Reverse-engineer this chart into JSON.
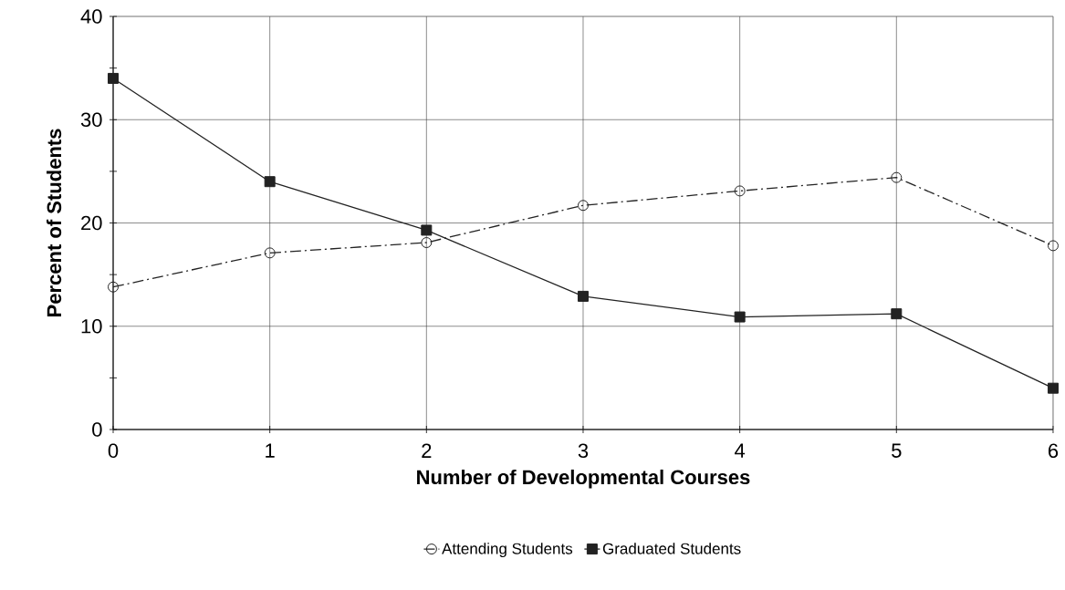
{
  "chart_data": {
    "type": "line",
    "xlabel": "Number of Developmental Courses",
    "ylabel": "Percent of Students",
    "x": [
      0,
      1,
      2,
      3,
      4,
      5,
      6
    ],
    "series": [
      {
        "name": "Attending  Students",
        "color": "#222222",
        "marker": "circle",
        "line_style": "dashed",
        "values": [
          13.8,
          17.1,
          18.1,
          21.7,
          23.1,
          24.4,
          17.8
        ]
      },
      {
        "name": "Graduated Students",
        "color": "#222222",
        "marker": "square",
        "line_style": "solid",
        "values": [
          34,
          24,
          19.3,
          12.9,
          10.9,
          11.2,
          4.0
        ]
      }
    ],
    "xlim": [
      0,
      6
    ],
    "xticks": [
      0,
      1,
      2,
      3,
      4,
      5,
      6
    ],
    "ylim": [
      0,
      40
    ],
    "yticks": [
      0,
      {
        "value": 5,
        "label": null
      },
      10,
      {
        "value": 15,
        "label": null
      },
      20,
      {
        "value": 25,
        "label": null
      },
      30,
      {
        "value": 35,
        "label": null
      },
      40
    ],
    "grid": true,
    "legend": "bottom"
  }
}
